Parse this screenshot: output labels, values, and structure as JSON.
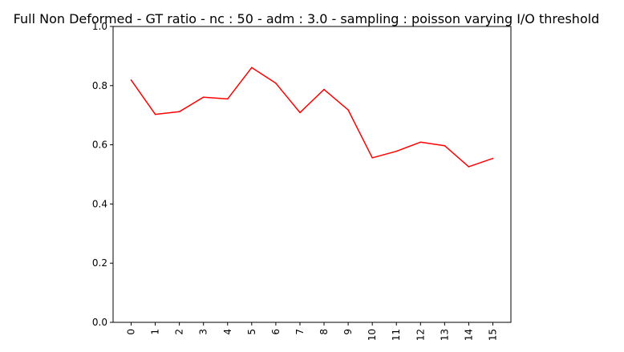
{
  "chart_data": {
    "type": "line",
    "title": "Full Non Deformed - GT ratio - nc : 50 - adm : 3.0 - sampling : poisson varying I/O threshold",
    "xlabel": "",
    "ylabel": "",
    "categories": [
      "0",
      "1",
      "2",
      "3",
      "4",
      "5",
      "6",
      "7",
      "8",
      "9",
      "10",
      "11",
      "12",
      "13",
      "14",
      "15"
    ],
    "series": [
      {
        "values": [
          0.819,
          0.703,
          0.712,
          0.761,
          0.755,
          0.861,
          0.808,
          0.709,
          0.787,
          0.718,
          0.556,
          0.578,
          0.609,
          0.597,
          0.526,
          0.554
        ],
        "color": "#ff0000"
      }
    ],
    "ylim": [
      0,
      1.0
    ],
    "yticks": [
      "0.0",
      "0.2",
      "0.4",
      "0.6",
      "0.8",
      "1.0"
    ],
    "xtick_rotation": "vertical",
    "grid": false,
    "legend": "none"
  }
}
